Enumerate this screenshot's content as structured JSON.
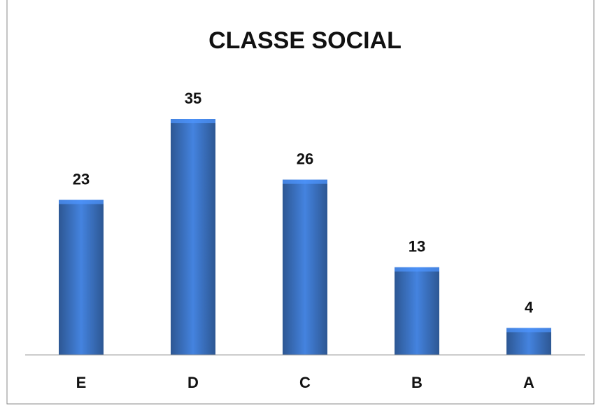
{
  "chart_data": {
    "type": "bar",
    "title": "CLASSE SOCIAL",
    "categories": [
      "E",
      "D",
      "C",
      "B",
      "A"
    ],
    "values": [
      23,
      35,
      26,
      13,
      4
    ],
    "color": "#3a6fbd"
  }
}
